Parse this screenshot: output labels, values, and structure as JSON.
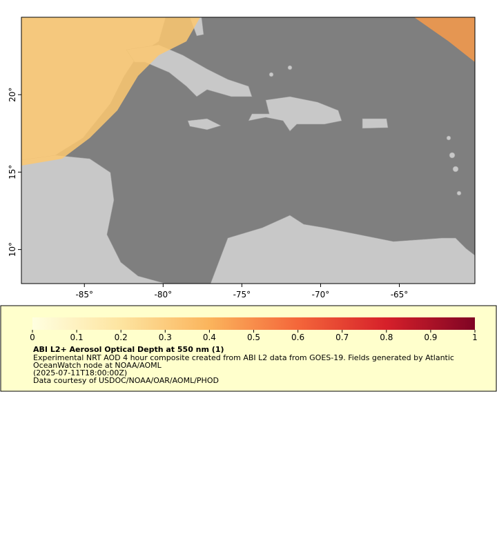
{
  "map": {
    "xlim": [
      -89,
      -60.2
    ],
    "ylim": [
      7.8,
      25
    ],
    "xticks": [
      {
        "value": -85,
        "label": "-85°"
      },
      {
        "value": -80,
        "label": "-80°"
      },
      {
        "value": -75,
        "label": "-75°"
      },
      {
        "value": -70,
        "label": "-70°"
      },
      {
        "value": -65,
        "label": "-65°"
      }
    ],
    "yticks": [
      {
        "value": 10,
        "label": "10°"
      },
      {
        "value": 15,
        "label": "15°"
      },
      {
        "value": 20,
        "label": "20°"
      }
    ]
  },
  "legend": {
    "range": [
      0,
      1
    ],
    "ticks": [
      0,
      0.1,
      0.2,
      0.3,
      0.4,
      0.5,
      0.6,
      0.7,
      0.8,
      0.9,
      1
    ],
    "title": "ABI L2+ Aerosol Optical Depth at 550 nm (1)",
    "lines": [
      "Experimental NRT AOD 4 hour composite created from ABI L2 data from GOES-19. Fields generated by Atlantic",
      "OceanWatch node at NOAA/AOML",
      "(2025-07-11T18:00:00Z)",
      "Data courtesy of USDOC/NOAA/OAR/AOML/PHOD"
    ]
  }
}
